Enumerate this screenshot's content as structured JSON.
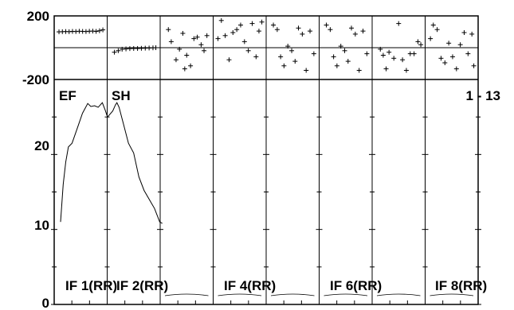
{
  "chart_data": {
    "type": "line",
    "panel_ids": [
      "EF",
      "SH"
    ],
    "range_label": "1 - 13",
    "top_strip": {
      "type": "scatter",
      "ylim": [
        -200,
        200
      ],
      "y_ticks": [
        "200",
        "-200"
      ],
      "columns": [
        {
          "x": [
            0.05,
            0.12,
            0.19,
            0.26,
            0.33,
            0.4,
            0.47,
            0.54,
            0.61,
            0.68,
            0.75,
            0.82,
            0.89,
            0.96
          ],
          "y": [
            105,
            106,
            107,
            106,
            108,
            107,
            109,
            108,
            107,
            109,
            110,
            108,
            112,
            118
          ]
        },
        {
          "x": [
            0.1,
            0.18,
            0.26,
            0.34,
            0.42,
            0.5,
            0.58,
            0.66,
            0.74,
            0.82,
            0.9,
            0.96
          ],
          "y": [
            -30,
            -20,
            -10,
            -8,
            -6,
            -5,
            -5,
            -4,
            -3,
            -2,
            -1,
            0
          ]
        },
        {
          "x": [
            0.12,
            0.18,
            0.35,
            0.42,
            0.5,
            0.58,
            0.65,
            0.72,
            0.8,
            0.86,
            0.92,
            0.28,
            0.46
          ],
          "y": [
            120,
            40,
            -10,
            95,
            -50,
            -120,
            60,
            70,
            20,
            -20,
            80,
            -80,
            -140
          ]
        },
        {
          "x": [
            0.05,
            0.12,
            0.2,
            0.28,
            0.36,
            0.44,
            0.52,
            0.6,
            0.68,
            0.76,
            0.84,
            0.9,
            0.96
          ],
          "y": [
            60,
            180,
            80,
            -80,
            100,
            120,
            150,
            40,
            -20,
            160,
            -60,
            110,
            170
          ]
        },
        {
          "x": [
            0.1,
            0.18,
            0.25,
            0.32,
            0.4,
            0.48,
            0.55,
            0.62,
            0.7,
            0.78,
            0.86,
            0.94
          ],
          "y": [
            150,
            120,
            -60,
            -120,
            10,
            -20,
            -90,
            130,
            90,
            -150,
            110,
            -40
          ]
        },
        {
          "x": [
            0.1,
            0.18,
            0.25,
            0.32,
            0.4,
            0.48,
            0.55,
            0.62,
            0.7,
            0.78,
            0.86,
            0.94
          ],
          "y": [
            150,
            120,
            -60,
            -120,
            10,
            -20,
            -90,
            130,
            90,
            -150,
            110,
            -40
          ]
        },
        {
          "x": [
            0.12,
            0.18,
            0.24,
            0.3,
            0.4,
            0.5,
            0.58,
            0.66,
            0.74,
            0.82,
            0.9,
            0.96
          ],
          "y": [
            -10,
            -50,
            -140,
            -30,
            -70,
            160,
            -80,
            -150,
            -40,
            -40,
            40,
            20
          ]
        },
        {
          "x": [
            0.06,
            0.12,
            0.2,
            0.28,
            0.36,
            0.44,
            0.52,
            0.6,
            0.68,
            0.76,
            0.84,
            0.92,
            0.96
          ],
          "y": [
            60,
            150,
            120,
            -70,
            -100,
            30,
            -60,
            -140,
            20,
            100,
            -40,
            90,
            -120
          ]
        },
        {
          "x": [
            0.08,
            0.16,
            0.24,
            0.32,
            0.4,
            0.48,
            0.56,
            0.64,
            0.72,
            0.8,
            0.88,
            0.94
          ],
          "y": [
            10,
            -30,
            -90,
            -60,
            -10,
            -80,
            50,
            -40,
            -20,
            -70,
            -60,
            0
          ]
        }
      ]
    },
    "main": {
      "ylim": [
        0,
        30
      ],
      "y_ticks": [
        "0",
        "10",
        "20"
      ],
      "y_tick_values": [
        0,
        10,
        20
      ],
      "column_labels": [
        "IF 1(RR)",
        "IF 2(RR)",
        "IF 4(RR)",
        "IF 6(RR)",
        "IF 8(RR)"
      ],
      "series": [
        {
          "x": [
            0.0,
            0.05,
            0.1,
            0.15,
            0.22,
            0.32,
            0.42,
            0.52,
            0.58,
            0.65,
            0.72,
            0.8,
            0.85,
            0.9,
            0.95,
            1.0,
            1.05,
            1.08,
            1.12,
            1.2,
            1.3,
            1.4,
            1.5,
            1.6,
            1.7,
            1.8,
            1.9,
            1.95
          ],
          "y": [
            11.0,
            16.0,
            19.0,
            21.0,
            21.5,
            23.5,
            25.5,
            26.8,
            26.4,
            26.5,
            26.3,
            26.9,
            26.0,
            25.0,
            25.4,
            25.8,
            26.6,
            26.9,
            26.3,
            24.2,
            21.5,
            20.2,
            17.0,
            15.2,
            14.0,
            12.8,
            11.0,
            10.8
          ]
        }
      ]
    }
  }
}
